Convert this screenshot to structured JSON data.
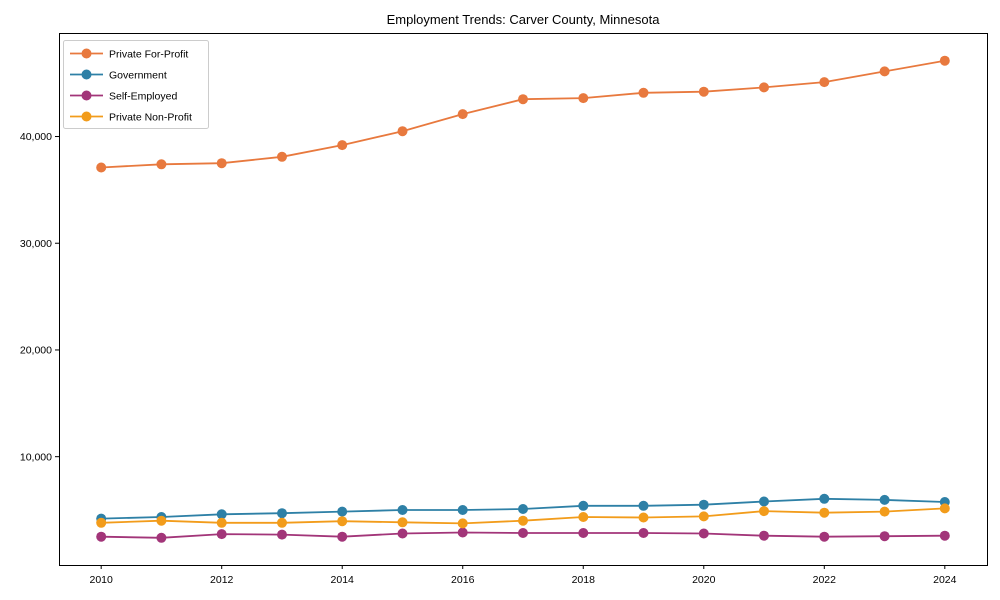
{
  "chart_data": {
    "type": "line",
    "title": "Employment Trends: Carver County, Minnesota",
    "xlabel": "",
    "ylabel": "",
    "x": [
      2010,
      2011,
      2012,
      2013,
      2014,
      2015,
      2016,
      2017,
      2018,
      2019,
      2020,
      2021,
      2022,
      2023,
      2024
    ],
    "series": [
      {
        "name": "Private For-Profit",
        "color": "#e8793e",
        "values": [
          37100,
          37400,
          37500,
          38100,
          39200,
          40500,
          42100,
          43500,
          43600,
          44100,
          44200,
          44600,
          45100,
          46100,
          47100
        ]
      },
      {
        "name": "Government",
        "color": "#2e80a6",
        "values": [
          4200,
          4350,
          4600,
          4700,
          4850,
          5000,
          5000,
          5100,
          5400,
          5400,
          5500,
          5800,
          6050,
          5950,
          5750
        ]
      },
      {
        "name": "Self-Employed",
        "color": "#a23579",
        "values": [
          2500,
          2400,
          2750,
          2700,
          2500,
          2800,
          2900,
          2850,
          2850,
          2850,
          2800,
          2600,
          2500,
          2550,
          2600
        ]
      },
      {
        "name": "Private Non-Profit",
        "color": "#f29c1b",
        "values": [
          3800,
          4000,
          3800,
          3800,
          3950,
          3850,
          3750,
          4000,
          4350,
          4300,
          4400,
          4900,
          4750,
          4850,
          5150
        ]
      }
    ],
    "xticks": [
      2010,
      2012,
      2014,
      2016,
      2018,
      2020,
      2022,
      2024
    ],
    "xtick_labels": [
      "2010",
      "2012",
      "2014",
      "2016",
      "2018",
      "2020",
      "2022",
      "2024"
    ],
    "yticks": [
      10000,
      20000,
      30000,
      40000
    ],
    "ytick_labels": [
      "10,000",
      "20,000",
      "30,000",
      "40,000"
    ],
    "xlim": [
      2009.3,
      2024.7
    ],
    "ylim": [
      -150,
      49700
    ],
    "grid": false,
    "legend_position": "upper-left",
    "marker": "circle",
    "frame_color": "#000000",
    "legend_border_color": "#cccccc",
    "background_color": "#ffffff"
  }
}
